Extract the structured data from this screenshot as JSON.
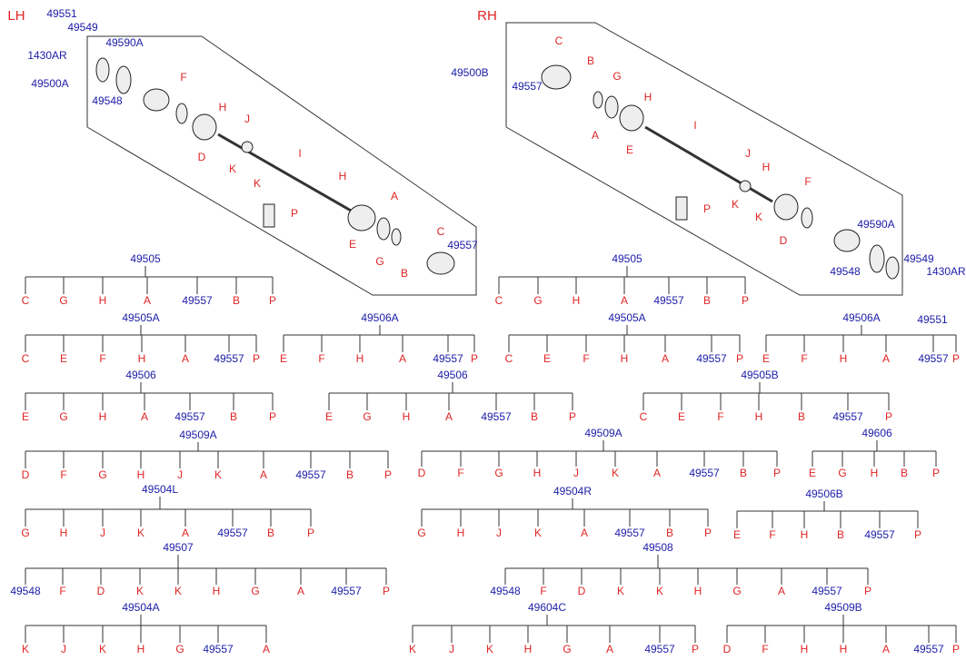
{
  "lh": {
    "side": "LH",
    "callouts": [
      "49551",
      "49549",
      "1430AR",
      "49590A",
      "49500A",
      "49548",
      "F",
      "H",
      "J",
      "D",
      "K",
      "K",
      "I",
      "H",
      "P",
      "A",
      "E",
      "C",
      "49557",
      "G",
      "B"
    ]
  },
  "rh": {
    "side": "RH",
    "callouts": [
      "C",
      "49500B",
      "49557",
      "B",
      "G",
      "H",
      "A",
      "I",
      "E",
      "J",
      "H",
      "K",
      "K",
      "P",
      "F",
      "D",
      "49590A",
      "49549",
      "1430AR",
      "49548",
      "49551"
    ]
  },
  "trees": [
    {
      "root": "49505",
      "leaves": [
        "C",
        "G",
        "H",
        "A",
        "49557",
        "B",
        "P"
      ]
    },
    {
      "root": "49505A",
      "leaves": [
        "C",
        "E",
        "F",
        "H",
        "A",
        "49557",
        "P"
      ]
    },
    {
      "root": "49506",
      "leaves": [
        "E",
        "G",
        "H",
        "A",
        "49557",
        "B",
        "P"
      ]
    },
    {
      "root": "49509A",
      "leaves": [
        "D",
        "F",
        "G",
        "H",
        "J",
        "K",
        "A",
        "49557",
        "B",
        "P"
      ]
    },
    {
      "root": "49504L",
      "leaves": [
        "G",
        "H",
        "J",
        "K",
        "A",
        "49557",
        "B",
        "P"
      ]
    },
    {
      "root": "49507",
      "leaves": [
        "49548",
        "F",
        "D",
        "K",
        "K",
        "H",
        "G",
        "A",
        "49557",
        "P"
      ]
    },
    {
      "root": "49504A",
      "leaves": [
        "K",
        "J",
        "K",
        "H",
        "G",
        "49557",
        "A"
      ]
    },
    {
      "root": "49505",
      "leaves": [
        "C",
        "G",
        "H",
        "A",
        "49557",
        "B",
        "P"
      ]
    },
    {
      "root": "49506A",
      "leaves": [
        "E",
        "F",
        "H",
        "A",
        "49557",
        "P"
      ]
    },
    {
      "root": "49505A",
      "leaves": [
        "C",
        "E",
        "F",
        "H",
        "A",
        "49557",
        "P"
      ]
    },
    {
      "root": "49506A",
      "leaves": [
        "E",
        "F",
        "H",
        "A",
        "49557",
        "P"
      ]
    },
    {
      "root": "49506",
      "leaves": [
        "E",
        "G",
        "H",
        "A",
        "49557",
        "B",
        "P"
      ]
    },
    {
      "root": "49505B",
      "leaves": [
        "C",
        "E",
        "F",
        "H",
        "B",
        "49557",
        "P"
      ]
    },
    {
      "root": "49509A",
      "leaves": [
        "D",
        "F",
        "G",
        "H",
        "J",
        "K",
        "A",
        "49557",
        "B",
        "P"
      ]
    },
    {
      "root": "49606",
      "leaves": [
        "E",
        "G",
        "H",
        "B",
        "P"
      ]
    },
    {
      "root": "49504R",
      "leaves": [
        "G",
        "H",
        "J",
        "K",
        "A",
        "49557",
        "B",
        "P"
      ]
    },
    {
      "root": "49506B",
      "leaves": [
        "E",
        "F",
        "H",
        "B",
        "49557",
        "P"
      ]
    },
    {
      "root": "49508",
      "leaves": [
        "49548",
        "F",
        "D",
        "K",
        "K",
        "H",
        "G",
        "A",
        "49557",
        "P"
      ]
    },
    {
      "root": "49604C",
      "leaves": [
        "K",
        "J",
        "K",
        "H",
        "G",
        "A",
        "49557",
        "P"
      ]
    },
    {
      "root": "49509B",
      "leaves": [
        "D",
        "F",
        "H",
        "H",
        "A",
        "49557",
        "P"
      ]
    }
  ]
}
